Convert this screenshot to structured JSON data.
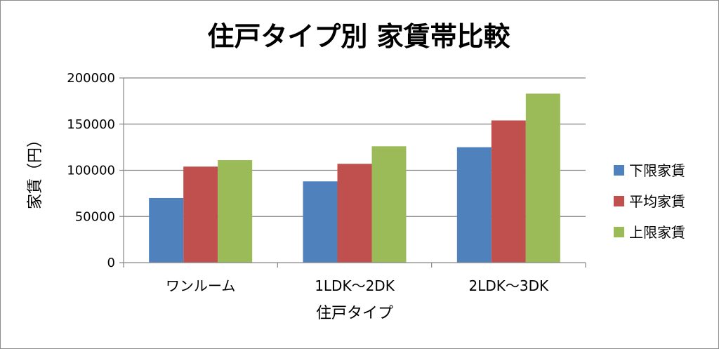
{
  "chart_data": {
    "type": "bar",
    "title": "住戸タイプ別 家賃帯比較",
    "xlabel": "住戸タイプ",
    "ylabel": "家賃（円）",
    "categories": [
      "ワンルーム",
      "1LDK～2DK",
      "2LDK～3DK"
    ],
    "ylim": [
      0,
      200000
    ],
    "yticks": [
      0,
      50000,
      100000,
      150000,
      200000
    ],
    "grid": true,
    "legend_position": "right",
    "series": [
      {
        "name": "下限家賃",
        "color": "#4f81bd",
        "values": [
          70000,
          88000,
          125000
        ]
      },
      {
        "name": "平均家賃",
        "color": "#c0504d",
        "values": [
          104000,
          107000,
          154000
        ]
      },
      {
        "name": "上限家賃",
        "color": "#9bbb59",
        "values": [
          111000,
          126000,
          183000
        ]
      }
    ]
  }
}
